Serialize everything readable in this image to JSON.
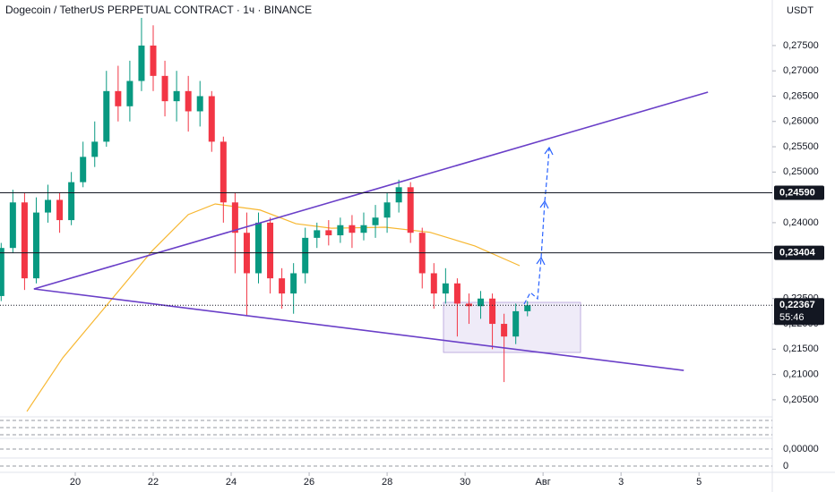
{
  "chart_data": {
    "type": "candlestick",
    "title": "Dogecoin / TetherUS PERPETUAL CONTRACT · 1ч · BINANCE",
    "currency": "USDT",
    "xlim": [
      18.07,
      37.88
    ],
    "xticks": [
      20,
      22,
      24,
      26,
      28,
      30,
      {
        "value": 32,
        "label": "Авг"
      },
      {
        "value": 34,
        "label": "3"
      },
      {
        "value": 36,
        "label": "5"
      }
    ],
    "ylim": [
      0.2018,
      0.284
    ],
    "yticks": [
      {
        "value": 0.275,
        "label": "0,27500"
      },
      {
        "value": 0.27,
        "label": "0,27000"
      },
      {
        "value": 0.265,
        "label": "0,26500"
      },
      {
        "value": 0.26,
        "label": "0,26000"
      },
      {
        "value": 0.255,
        "label": "0,25500"
      },
      {
        "value": 0.25,
        "label": "0,25000"
      },
      {
        "value": 0.24,
        "label": "0,24000"
      },
      {
        "value": 0.225,
        "label": "0,22500"
      },
      {
        "value": 0.22,
        "label": "0,22000"
      },
      {
        "value": 0.215,
        "label": "0,21500"
      },
      {
        "value": 0.21,
        "label": "0,21000"
      },
      {
        "value": 0.205,
        "label": "0,20500"
      }
    ],
    "up_color": "#089981",
    "down_color": "#f23645",
    "candles": {
      "x": [
        18.1,
        18.4,
        18.7,
        19.0,
        19.3,
        19.6,
        19.9,
        20.2,
        20.5,
        20.8,
        21.1,
        21.4,
        21.7,
        22.0,
        22.3,
        22.6,
        22.9,
        23.2,
        23.5,
        23.8,
        24.1,
        24.4,
        24.7,
        25.0,
        25.3,
        25.6,
        25.9,
        26.2,
        26.5,
        26.8,
        27.1,
        27.4,
        27.7,
        28.0,
        28.3,
        28.6,
        28.9,
        29.2,
        29.5,
        29.8,
        30.1,
        30.4,
        30.7,
        31.0,
        31.3,
        31.6
      ],
      "open": [
        0.2255,
        0.235,
        0.244,
        0.229,
        0.242,
        0.2445,
        0.2405,
        0.248,
        0.253,
        0.256,
        0.266,
        0.263,
        0.268,
        0.275,
        0.269,
        0.264,
        0.266,
        0.262,
        0.265,
        0.256,
        0.244,
        0.238,
        0.23,
        0.24,
        0.229,
        0.226,
        0.23,
        0.237,
        0.2385,
        0.2375,
        0.2395,
        0.238,
        0.2395,
        0.241,
        0.244,
        0.247,
        0.238,
        0.23,
        0.226,
        0.228,
        0.224,
        0.2235,
        0.225,
        0.22,
        0.2175,
        0.2225
      ],
      "high": [
        0.236,
        0.2465,
        0.246,
        0.245,
        0.2475,
        0.246,
        0.25,
        0.256,
        0.26,
        0.27,
        0.271,
        0.272,
        0.283,
        0.279,
        0.272,
        0.27,
        0.269,
        0.268,
        0.266,
        0.257,
        0.246,
        0.242,
        0.242,
        0.241,
        0.231,
        0.232,
        0.239,
        0.24,
        0.2405,
        0.241,
        0.2415,
        0.242,
        0.2435,
        0.246,
        0.2485,
        0.248,
        0.239,
        0.232,
        0.231,
        0.229,
        0.226,
        0.2265,
        0.226,
        0.222,
        0.224,
        0.2245
      ],
      "low": [
        0.2245,
        0.234,
        0.2267,
        0.228,
        0.24,
        0.238,
        0.2395,
        0.247,
        0.251,
        0.255,
        0.26,
        0.26,
        0.266,
        0.266,
        0.261,
        0.26,
        0.258,
        0.259,
        0.254,
        0.24,
        0.23,
        0.2215,
        0.228,
        0.226,
        0.223,
        0.222,
        0.228,
        0.235,
        0.2355,
        0.236,
        0.235,
        0.2365,
        0.237,
        0.238,
        0.242,
        0.236,
        0.227,
        0.223,
        0.224,
        0.2175,
        0.22,
        0.221,
        0.215,
        0.2085,
        0.216,
        0.2215
      ],
      "close": [
        0.235,
        0.244,
        0.229,
        0.242,
        0.2445,
        0.2405,
        0.248,
        0.253,
        0.256,
        0.266,
        0.263,
        0.268,
        0.275,
        0.269,
        0.264,
        0.266,
        0.262,
        0.265,
        0.256,
        0.244,
        0.238,
        0.23,
        0.24,
        0.229,
        0.226,
        0.23,
        0.237,
        0.2385,
        0.2375,
        0.2395,
        0.238,
        0.2395,
        0.241,
        0.244,
        0.247,
        0.238,
        0.23,
        0.226,
        0.228,
        0.224,
        0.2235,
        0.225,
        0.22,
        0.2175,
        0.2225,
        0.22367
      ]
    },
    "moving_average": {
      "color": "#f7b731",
      "x": [
        18.76,
        19.68,
        20.83,
        21.98,
        22.9,
        23.59,
        24.74,
        25.66,
        26.57,
        27.95,
        29.1,
        30.25,
        31.4
      ],
      "values": [
        0.2027,
        0.2133,
        0.2239,
        0.2345,
        0.2416,
        0.2437,
        0.2425,
        0.2398,
        0.2389,
        0.2391,
        0.2381,
        0.2354,
        0.2315
      ]
    },
    "trendlines": [
      {
        "color": "#6a3fc8",
        "x": [
          18.94,
          36.23
        ],
        "values": [
          0.2269,
          0.2658
        ]
      },
      {
        "color": "#6a3fc8",
        "x": [
          18.94,
          35.61
        ],
        "values": [
          0.2269,
          0.2108
        ]
      }
    ],
    "levels": [
      {
        "value": 0.2459,
        "label": "0,24590"
      },
      {
        "value": 0.23404,
        "label": "0,23404"
      }
    ],
    "last_price": {
      "value": 0.22367,
      "label": "0,22367",
      "countdown": "55:46"
    },
    "indicator_labels": [
      "0,00000",
      "0"
    ]
  }
}
